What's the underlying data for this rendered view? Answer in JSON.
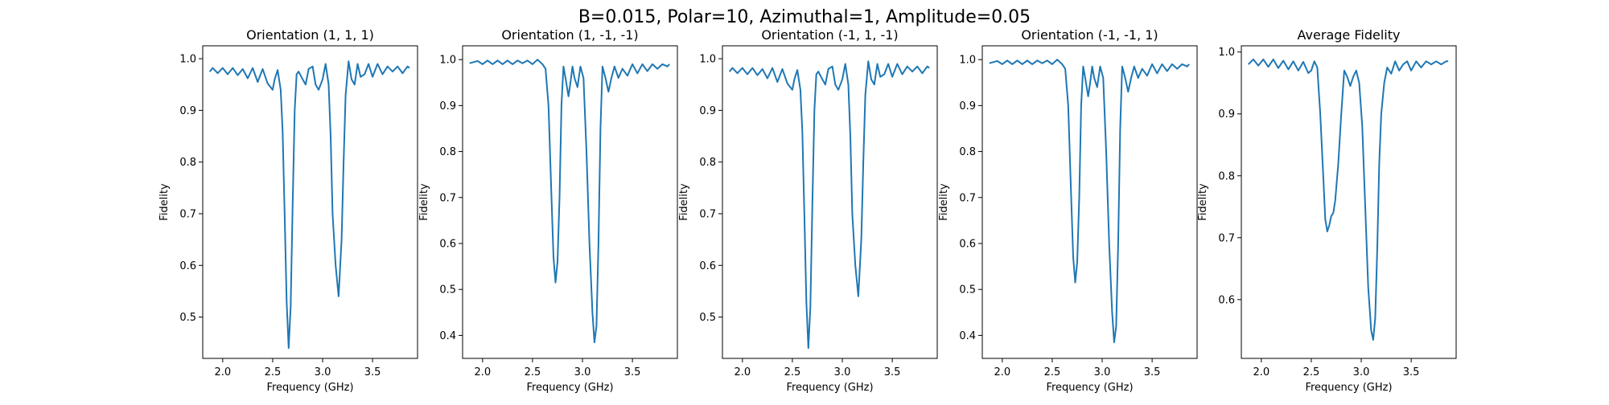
{
  "figure": {
    "suptitle": "B=0.015, Polar=10, Azimuthal=1, Amplitude=0.05"
  },
  "style": {
    "line_color": "#1f77b4",
    "axis_color": "#000000",
    "background": "#ffffff"
  },
  "chart_data": [
    {
      "type": "line",
      "title": "Orientation (1, 1, 1)",
      "xlabel": "Frequency (GHz)",
      "ylabel": "Fidelity",
      "xlim": [
        1.8,
        3.95
      ],
      "ylim": [
        0.42,
        1.025
      ],
      "xticks": [
        2.0,
        2.5,
        3.0,
        3.5
      ],
      "xtick_labels": [
        "2.0",
        "2.5",
        "3.0",
        "3.5"
      ],
      "yticks": [
        0.5,
        0.6,
        0.7,
        0.8,
        0.9,
        1.0
      ],
      "ytick_labels": [
        "0.5",
        "0.6",
        "0.7",
        "0.8",
        "0.9",
        "1.0"
      ],
      "grid": false,
      "series": [
        {
          "x": [
            1.87,
            1.9,
            1.95,
            2.0,
            2.05,
            2.1,
            2.15,
            2.2,
            2.25,
            2.3,
            2.35,
            2.4,
            2.45,
            2.5,
            2.52,
            2.55,
            2.58,
            2.6,
            2.62,
            2.64,
            2.66,
            2.68,
            2.7,
            2.72,
            2.74,
            2.76,
            2.8,
            2.83,
            2.86,
            2.9,
            2.93,
            2.96,
            3.0,
            3.03,
            3.06,
            3.08,
            3.1,
            3.13,
            3.16,
            3.19,
            3.21,
            3.23,
            3.26,
            3.29,
            3.32,
            3.35,
            3.38,
            3.42,
            3.46,
            3.5,
            3.55,
            3.6,
            3.65,
            3.7,
            3.75,
            3.8,
            3.85,
            3.87
          ],
          "y": [
            0.975,
            0.982,
            0.972,
            0.982,
            0.97,
            0.982,
            0.968,
            0.98,
            0.962,
            0.982,
            0.955,
            0.98,
            0.952,
            0.94,
            0.96,
            0.978,
            0.94,
            0.86,
            0.7,
            0.53,
            0.44,
            0.52,
            0.72,
            0.9,
            0.97,
            0.975,
            0.96,
            0.95,
            0.98,
            0.985,
            0.95,
            0.94,
            0.96,
            0.99,
            0.95,
            0.85,
            0.7,
            0.6,
            0.54,
            0.65,
            0.8,
            0.93,
            0.995,
            0.96,
            0.95,
            0.99,
            0.965,
            0.97,
            0.99,
            0.965,
            0.99,
            0.97,
            0.985,
            0.975,
            0.985,
            0.972,
            0.985,
            0.982
          ]
        }
      ]
    },
    {
      "type": "line",
      "title": "Orientation (1, -1, -1)",
      "xlabel": "Frequency (GHz)",
      "ylabel": "Fidelity",
      "xlim": [
        1.8,
        3.95
      ],
      "ylim": [
        0.35,
        1.03
      ],
      "xticks": [
        2.0,
        2.5,
        3.0,
        3.5
      ],
      "xtick_labels": [
        "2.0",
        "2.5",
        "3.0",
        "3.5"
      ],
      "yticks": [
        0.4,
        0.5,
        0.6,
        0.7,
        0.8,
        0.9,
        1.0
      ],
      "ytick_labels": [
        "0.4",
        "0.5",
        "0.6",
        "0.7",
        "0.8",
        "0.9",
        "1.0"
      ],
      "grid": false,
      "series": [
        {
          "x": [
            1.87,
            1.95,
            2.0,
            2.05,
            2.1,
            2.15,
            2.2,
            2.25,
            2.3,
            2.35,
            2.4,
            2.45,
            2.5,
            2.55,
            2.6,
            2.63,
            2.66,
            2.69,
            2.71,
            2.73,
            2.75,
            2.77,
            2.79,
            2.81,
            2.83,
            2.86,
            2.88,
            2.9,
            2.92,
            2.95,
            2.98,
            3.01,
            3.04,
            3.07,
            3.1,
            3.12,
            3.14,
            3.16,
            3.18,
            3.2,
            3.23,
            3.26,
            3.29,
            3.32,
            3.36,
            3.4,
            3.45,
            3.5,
            3.55,
            3.6,
            3.65,
            3.7,
            3.75,
            3.8,
            3.85,
            3.87
          ],
          "y": [
            0.992,
            0.997,
            0.99,
            0.998,
            0.99,
            0.998,
            0.99,
            0.998,
            0.99,
            0.998,
            0.992,
            0.998,
            0.99,
            1.0,
            0.99,
            0.98,
            0.9,
            0.7,
            0.57,
            0.515,
            0.56,
            0.7,
            0.9,
            0.985,
            0.96,
            0.92,
            0.95,
            0.985,
            0.96,
            0.94,
            0.985,
            0.96,
            0.8,
            0.6,
            0.45,
            0.385,
            0.42,
            0.6,
            0.85,
            0.985,
            0.96,
            0.93,
            0.96,
            0.985,
            0.96,
            0.98,
            0.965,
            0.99,
            0.97,
            0.99,
            0.975,
            0.99,
            0.98,
            0.99,
            0.985,
            0.99
          ]
        }
      ]
    },
    {
      "type": "line",
      "title": "Orientation (-1, 1, -1)",
      "xlabel": "Frequency (GHz)",
      "ylabel": "Fidelity",
      "xlim": [
        1.8,
        3.95
      ],
      "ylim": [
        0.42,
        1.025
      ],
      "xticks": [
        2.0,
        2.5,
        3.0,
        3.5
      ],
      "xtick_labels": [
        "2.0",
        "2.5",
        "3.0",
        "3.5"
      ],
      "yticks": [
        0.5,
        0.6,
        0.7,
        0.8,
        0.9,
        1.0
      ],
      "ytick_labels": [
        "0.5",
        "0.6",
        "0.7",
        "0.8",
        "0.9",
        "1.0"
      ],
      "grid": false,
      "series": [
        {
          "x": [
            1.87,
            1.9,
            1.95,
            2.0,
            2.05,
            2.1,
            2.15,
            2.2,
            2.25,
            2.3,
            2.35,
            2.4,
            2.45,
            2.5,
            2.52,
            2.55,
            2.58,
            2.6,
            2.62,
            2.64,
            2.66,
            2.68,
            2.7,
            2.72,
            2.74,
            2.76,
            2.8,
            2.83,
            2.86,
            2.9,
            2.93,
            2.96,
            3.0,
            3.03,
            3.06,
            3.08,
            3.1,
            3.13,
            3.16,
            3.19,
            3.21,
            3.23,
            3.26,
            3.29,
            3.32,
            3.35,
            3.38,
            3.42,
            3.46,
            3.5,
            3.55,
            3.6,
            3.65,
            3.7,
            3.75,
            3.8,
            3.85,
            3.87
          ],
          "y": [
            0.975,
            0.982,
            0.972,
            0.982,
            0.97,
            0.982,
            0.968,
            0.98,
            0.962,
            0.982,
            0.955,
            0.98,
            0.952,
            0.94,
            0.96,
            0.978,
            0.94,
            0.86,
            0.7,
            0.53,
            0.44,
            0.52,
            0.72,
            0.9,
            0.97,
            0.975,
            0.96,
            0.95,
            0.98,
            0.985,
            0.95,
            0.94,
            0.96,
            0.99,
            0.95,
            0.85,
            0.7,
            0.6,
            0.54,
            0.65,
            0.8,
            0.93,
            0.995,
            0.96,
            0.95,
            0.99,
            0.965,
            0.97,
            0.99,
            0.965,
            0.99,
            0.97,
            0.985,
            0.975,
            0.985,
            0.972,
            0.985,
            0.982
          ]
        }
      ]
    },
    {
      "type": "line",
      "title": "Orientation (-1, -1, 1)",
      "xlabel": "Frequency (GHz)",
      "ylabel": "Fidelity",
      "xlim": [
        1.8,
        3.95
      ],
      "ylim": [
        0.35,
        1.03
      ],
      "xticks": [
        2.0,
        2.5,
        3.0,
        3.5
      ],
      "xtick_labels": [
        "2.0",
        "2.5",
        "3.0",
        "3.5"
      ],
      "yticks": [
        0.4,
        0.5,
        0.6,
        0.7,
        0.8,
        0.9,
        1.0
      ],
      "ytick_labels": [
        "0.4",
        "0.5",
        "0.6",
        "0.7",
        "0.8",
        "0.9",
        "1.0"
      ],
      "grid": false,
      "series": [
        {
          "x": [
            1.87,
            1.95,
            2.0,
            2.05,
            2.1,
            2.15,
            2.2,
            2.25,
            2.3,
            2.35,
            2.4,
            2.45,
            2.5,
            2.55,
            2.6,
            2.63,
            2.66,
            2.69,
            2.71,
            2.73,
            2.75,
            2.77,
            2.79,
            2.81,
            2.83,
            2.86,
            2.88,
            2.9,
            2.92,
            2.95,
            2.98,
            3.01,
            3.04,
            3.07,
            3.1,
            3.12,
            3.14,
            3.16,
            3.18,
            3.2,
            3.23,
            3.26,
            3.29,
            3.32,
            3.36,
            3.4,
            3.45,
            3.5,
            3.55,
            3.6,
            3.65,
            3.7,
            3.75,
            3.8,
            3.85,
            3.87
          ],
          "y": [
            0.992,
            0.997,
            0.99,
            0.998,
            0.99,
            0.998,
            0.99,
            0.998,
            0.99,
            0.998,
            0.992,
            0.998,
            0.99,
            1.0,
            0.99,
            0.98,
            0.9,
            0.7,
            0.57,
            0.515,
            0.56,
            0.7,
            0.9,
            0.985,
            0.96,
            0.92,
            0.95,
            0.985,
            0.96,
            0.94,
            0.985,
            0.96,
            0.8,
            0.6,
            0.45,
            0.385,
            0.42,
            0.6,
            0.85,
            0.985,
            0.96,
            0.93,
            0.96,
            0.985,
            0.96,
            0.98,
            0.965,
            0.99,
            0.97,
            0.99,
            0.975,
            0.99,
            0.98,
            0.99,
            0.985,
            0.99
          ]
        }
      ]
    },
    {
      "type": "line",
      "title": "Average Fidelity",
      "xlabel": "Frequency (GHz)",
      "ylabel": "Fidelity",
      "xlim": [
        1.8,
        3.95
      ],
      "ylim": [
        0.505,
        1.01
      ],
      "xticks": [
        2.0,
        2.5,
        3.0,
        3.5
      ],
      "xtick_labels": [
        "2.0",
        "2.5",
        "3.0",
        "3.5"
      ],
      "yticks": [
        0.6,
        0.7,
        0.8,
        0.9,
        1.0
      ],
      "ytick_labels": [
        "0.6",
        "0.7",
        "0.8",
        "0.9",
        "1.0"
      ],
      "grid": false,
      "series": [
        {
          "x": [
            1.87,
            1.92,
            1.97,
            2.02,
            2.07,
            2.12,
            2.17,
            2.22,
            2.27,
            2.32,
            2.37,
            2.42,
            2.47,
            2.5,
            2.53,
            2.56,
            2.59,
            2.62,
            2.64,
            2.66,
            2.68,
            2.7,
            2.72,
            2.74,
            2.77,
            2.8,
            2.83,
            2.86,
            2.89,
            2.92,
            2.95,
            2.98,
            3.01,
            3.04,
            3.07,
            3.1,
            3.12,
            3.14,
            3.16,
            3.18,
            3.2,
            3.23,
            3.26,
            3.3,
            3.34,
            3.38,
            3.42,
            3.46,
            3.5,
            3.55,
            3.6,
            3.65,
            3.7,
            3.75,
            3.8,
            3.85,
            3.87
          ],
          "y": [
            0.98,
            0.988,
            0.978,
            0.988,
            0.976,
            0.988,
            0.974,
            0.986,
            0.972,
            0.985,
            0.97,
            0.984,
            0.966,
            0.97,
            0.985,
            0.975,
            0.9,
            0.8,
            0.73,
            0.71,
            0.72,
            0.735,
            0.74,
            0.76,
            0.82,
            0.9,
            0.97,
            0.96,
            0.945,
            0.96,
            0.97,
            0.95,
            0.88,
            0.75,
            0.62,
            0.55,
            0.535,
            0.57,
            0.68,
            0.82,
            0.9,
            0.95,
            0.975,
            0.965,
            0.985,
            0.97,
            0.98,
            0.985,
            0.97,
            0.985,
            0.975,
            0.985,
            0.98,
            0.985,
            0.98,
            0.985,
            0.985
          ]
        }
      ]
    }
  ]
}
